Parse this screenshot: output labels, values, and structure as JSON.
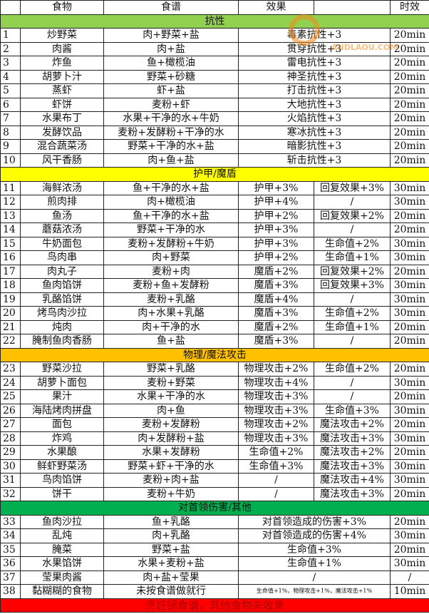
{
  "header": {
    "food": "食物",
    "recipe": "食谱",
    "effect": "效果",
    "effect2": "",
    "duration": "时效"
  },
  "sections": [
    {
      "title": "抗性",
      "color": "#92d050",
      "rows": [
        {
          "no": "1",
          "food": "炒野菜",
          "recipe": "肉+野菜+盐",
          "effect": "毒素抗性+3",
          "merged": true,
          "time": "20min"
        },
        {
          "no": "2",
          "food": "肉酱",
          "recipe": "肉+盐",
          "effect": "贯穿抗性+3",
          "merged": true,
          "time": "20min"
        },
        {
          "no": "3",
          "food": "炸鱼",
          "recipe": "鱼+橄榄油",
          "effect": "雷电抗性+3",
          "merged": true,
          "time": "20min"
        },
        {
          "no": "4",
          "food": "胡萝卜汁",
          "recipe": "野菜+砂糖",
          "effect": "神圣抗性+3",
          "merged": true,
          "time": "20min"
        },
        {
          "no": "5",
          "food": "蒸虾",
          "recipe": "虾+盐",
          "effect": "打击抗性+3",
          "merged": true,
          "time": "20min"
        },
        {
          "no": "6",
          "food": "虾饼",
          "recipe": "麦粉+虾",
          "effect": "大地抗性+3",
          "merged": true,
          "time": "20min"
        },
        {
          "no": "7",
          "food": "水果布丁",
          "recipe": "水果+干净的水+牛奶",
          "effect": "火焰抗性+3",
          "merged": true,
          "time": "20min"
        },
        {
          "no": "8",
          "food": "发酵饮品",
          "recipe": "麦粉+发酵粉+干净的水",
          "effect": "寒冰抗性+3",
          "merged": true,
          "time": "20min"
        },
        {
          "no": "9",
          "food": "混合蔬菜汤",
          "recipe": "野菜+干净的水+盐",
          "effect": "暗影抗性+3",
          "merged": true,
          "time": "20min"
        },
        {
          "no": "10",
          "food": "风干香肠",
          "recipe": "肉+鱼+盐",
          "effect": "斩击抗性+3",
          "merged": true,
          "time": "20min"
        }
      ]
    },
    {
      "title": "护甲/魔盾",
      "color": "#ffff00",
      "rows": [
        {
          "no": "11",
          "food": "海鲜浓汤",
          "recipe": "鱼+干净的水+盐",
          "effect": "护甲+3%",
          "effect2": "回复效果+3%",
          "time": "30min"
        },
        {
          "no": "12",
          "food": "煎肉排",
          "recipe": "肉+橄榄油",
          "effect": "护甲+4%",
          "effect2": "/",
          "time": "30min"
        },
        {
          "no": "13",
          "food": "鱼汤",
          "recipe": "鱼+干净的水+盐",
          "effect": "护甲+2%",
          "effect2": "回复效果+2%",
          "time": "20min"
        },
        {
          "no": "14",
          "food": "蘑菇浓汤",
          "recipe": "野菜+干净的水",
          "effect": "护甲+3%",
          "effect2": "/",
          "time": "20min"
        },
        {
          "no": "15",
          "food": "牛奶面包",
          "recipe": "麦粉+发酵粉+牛奶",
          "effect": "护甲+3%",
          "effect2": "生命值+2%",
          "time": "30min"
        },
        {
          "no": "16",
          "food": "鸟肉串",
          "recipe": "肉+野菜",
          "effect": "护甲+2%",
          "effect2": "生命值+1%",
          "time": "30min"
        },
        {
          "no": "17",
          "food": "肉丸子",
          "recipe": "麦粉+肉",
          "effect": "魔盾+2%",
          "effect2": "回复效果+2%",
          "time": "20min"
        },
        {
          "no": "18",
          "food": "鱼肉馅饼",
          "recipe": "麦粉+鱼+发酵粉",
          "effect": "魔盾+3%",
          "effect2": "回复效果+3%",
          "time": "30min"
        },
        {
          "no": "19",
          "food": "乳酪馅饼",
          "recipe": "麦粉+乳酪",
          "effect": "魔盾+4%",
          "effect2": "/",
          "time": "30min"
        },
        {
          "no": "20",
          "food": "烤鸟肉沙拉",
          "recipe": "肉+水果+乳酪",
          "effect": "魔盾+3%",
          "effect2": "生命值+2%",
          "time": "30min"
        },
        {
          "no": "21",
          "food": "炖肉",
          "recipe": "肉+干净的水",
          "effect": "魔盾+2%",
          "effect2": "生命值+1%",
          "time": "20min"
        },
        {
          "no": "22",
          "food": "腌制鱼肉香肠",
          "recipe": "鱼+盐",
          "effect": "魔盾+3%",
          "effect2": "/",
          "time": "20min"
        }
      ]
    },
    {
      "title": "物理/魔法攻击",
      "color": "#ffc000",
      "rows": [
        {
          "no": "23",
          "food": "野菜沙拉",
          "recipe": "野菜+乳酪",
          "effect": "物理攻击+2%",
          "effect2": "生命值+2%",
          "time": "20min"
        },
        {
          "no": "24",
          "food": "胡萝卜面包",
          "recipe": "麦粉+野菜",
          "effect": "物理攻击+4%",
          "effect2": "/",
          "time": "30min"
        },
        {
          "no": "25",
          "food": "果汁",
          "recipe": "水果+干净的水",
          "effect": "物理攻击+3%",
          "effect2": "/",
          "time": "20min"
        },
        {
          "no": "26",
          "food": "海陆烤肉拼盘",
          "recipe": "肉+鱼",
          "effect": "物理攻击+3%",
          "effect2": "生命值+3%",
          "time": "30min"
        },
        {
          "no": "27",
          "food": "面包",
          "recipe": "麦粉+发酵粉",
          "effect": "物理攻击+2%",
          "effect2": "魔法攻击+2%",
          "time": "20min"
        },
        {
          "no": "28",
          "food": "炸鸡",
          "recipe": "肉+发酵粉+盐",
          "effect": "物理攻击+3%",
          "effect2": "魔法攻击+3%",
          "time": "30min"
        },
        {
          "no": "29",
          "food": "水果酿",
          "recipe": "水果+发酵粉",
          "effect": "生命值+2%",
          "effect2": "魔法攻击+2%",
          "time": "20min"
        },
        {
          "no": "30",
          "food": "鲜虾野菜汤",
          "recipe": "野菜+虾+干净的水",
          "effect": "生命值+3%",
          "effect2": "魔法攻击+3%",
          "time": "30min"
        },
        {
          "no": "31",
          "food": "鸟肉馅饼",
          "recipe": "麦粉+肉+盐",
          "effect": "/",
          "effect2": "魔法攻击+4%",
          "time": "30min"
        },
        {
          "no": "32",
          "food": "饼干",
          "recipe": "麦粉+牛奶",
          "effect": "/",
          "effect2": "魔法攻击+3%",
          "time": "20min"
        }
      ]
    },
    {
      "title": "对首领伤害/其他",
      "color": "#00b050",
      "rows": [
        {
          "no": "33",
          "food": "鱼肉沙拉",
          "recipe": "鱼+乳酪",
          "effect": "对首领造成的伤害+3%",
          "merged": true,
          "time": "20min"
        },
        {
          "no": "34",
          "food": "乱炖",
          "recipe": "肉+乳酪",
          "effect": "对首领造成的伤害+4%",
          "merged": true,
          "time": "30min"
        },
        {
          "no": "35",
          "food": "腌菜",
          "recipe": "野菜+盐",
          "effect": "生命值+3%",
          "merged": true,
          "time": "20min"
        },
        {
          "no": "36",
          "food": "水果馅饼",
          "recipe": "水果+麦粉+盐",
          "effect": "生命值+1%",
          "merged": true,
          "time": "30min"
        },
        {
          "no": "37",
          "food": "莹果肉酱",
          "recipe": "肉+盐+莹果",
          "effect": "/",
          "merged": true,
          "time": "/"
        },
        {
          "no": "38",
          "food": "黏糊糊的食物",
          "recipe": "未按食谱做就行",
          "effect": "生命值+1%，物理攻击+1%，魔法攻击+1%",
          "merged": true,
          "small": true,
          "time": "10min"
        }
      ]
    }
  ],
  "footer": {
    "text": "烹饪锅食谱，其他食物未收录",
    "color": "#ff0000"
  },
  "watermark": {
    "text": "ANDLAOU.COM",
    "color": "#f08a1c"
  }
}
